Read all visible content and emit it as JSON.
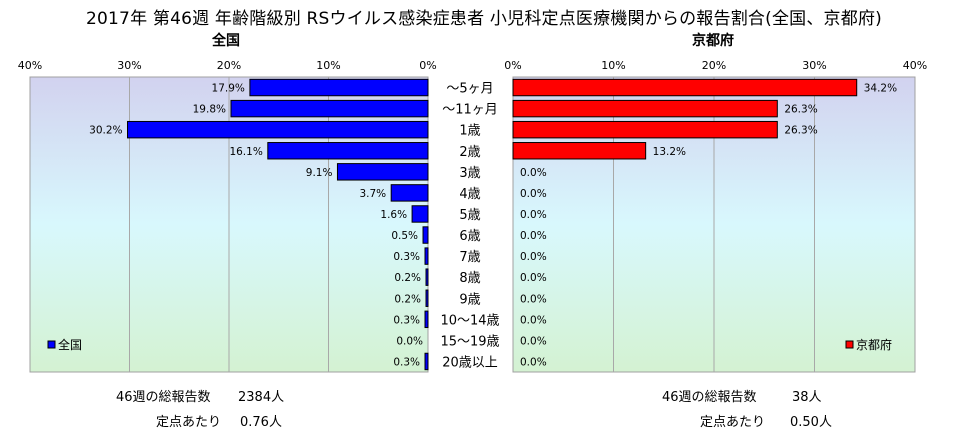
{
  "title": "2017年 第46週 年齢階級別 RSウイルス感染症患者 小児科定点医療機関からの報告割合(全国、京都府)",
  "chart_data": [
    {
      "type": "bar",
      "orientation": "horizontal",
      "direction": "right-to-left",
      "panel_title": "全国",
      "categories": [
        "〜5ヶ月",
        "〜11ヶ月",
        "1歳",
        "2歳",
        "3歳",
        "4歳",
        "5歳",
        "6歳",
        "7歳",
        "8歳",
        "9歳",
        "10〜14歳",
        "15〜19歳",
        "20歳以上"
      ],
      "series": [
        {
          "name": "全国",
          "values": [
            17.9,
            19.8,
            30.2,
            16.1,
            9.1,
            3.7,
            1.6,
            0.5,
            0.3,
            0.2,
            0.2,
            0.3,
            0.0,
            0.3
          ],
          "color": "#0000ff"
        }
      ],
      "data_labels": [
        "17.9%",
        "19.8%",
        "30.2%",
        "16.1%",
        "9.1%",
        "3.7%",
        "1.6%",
        "0.5%",
        "0.3%",
        "0.2%",
        "0.2%",
        "0.3%",
        "0.0%",
        "0.3%"
      ],
      "xlim": [
        0,
        40
      ],
      "xticks": [
        "40%",
        "30%",
        "20%",
        "10%",
        "0%"
      ],
      "grid": true,
      "legend_position": "bottom-left"
    },
    {
      "type": "bar",
      "orientation": "horizontal",
      "direction": "left-to-right",
      "panel_title": "京都府",
      "categories": [
        "〜5ヶ月",
        "〜11ヶ月",
        "1歳",
        "2歳",
        "3歳",
        "4歳",
        "5歳",
        "6歳",
        "7歳",
        "8歳",
        "9歳",
        "10〜14歳",
        "15〜19歳",
        "20歳以上"
      ],
      "series": [
        {
          "name": "京都府",
          "values": [
            34.2,
            26.3,
            26.3,
            13.2,
            0.0,
            0.0,
            0.0,
            0.0,
            0.0,
            0.0,
            0.0,
            0.0,
            0.0,
            0.0
          ],
          "color": "#ff0000"
        }
      ],
      "data_labels": [
        "34.2%",
        "26.3%",
        "26.3%",
        "13.2%",
        "0.0%",
        "0.0%",
        "0.0%",
        "0.0%",
        "0.0%",
        "0.0%",
        "0.0%",
        "0.0%",
        "0.0%",
        "0.0%"
      ],
      "xlim": [
        0,
        40
      ],
      "xticks": [
        "0%",
        "10%",
        "20%",
        "30%",
        "40%"
      ],
      "grid": true,
      "legend_position": "bottom-right"
    }
  ],
  "footer": {
    "national": {
      "total_label": "46週の総報告数",
      "total_value": "2384人",
      "per_label": "定点あたり",
      "per_value": "0.76人"
    },
    "kyoto": {
      "total_label": "46週の総報告数",
      "total_value": "38人",
      "per_label": "定点あたり",
      "per_value": "0.50人"
    }
  }
}
